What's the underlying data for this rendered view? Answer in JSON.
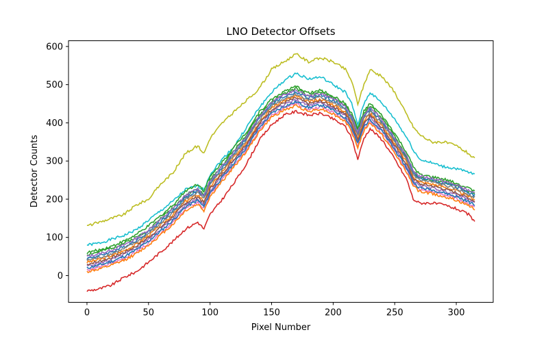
{
  "chart_data": {
    "type": "line",
    "title": "LNO Detector Offsets",
    "xlabel": "Pixel Number",
    "ylabel": "Detector Counts",
    "xlim": [
      -15,
      330
    ],
    "ylim": [
      -70,
      615
    ],
    "xticks": [
      0,
      50,
      100,
      150,
      200,
      250,
      300
    ],
    "yticks": [
      0,
      100,
      200,
      300,
      400,
      500,
      600
    ],
    "grid": false,
    "legend": "none",
    "x_range": [
      0,
      315
    ],
    "profile_x": [
      0,
      10,
      20,
      30,
      40,
      50,
      60,
      70,
      80,
      90,
      95,
      100,
      110,
      120,
      130,
      140,
      150,
      160,
      170,
      180,
      190,
      200,
      210,
      215,
      220,
      225,
      230,
      240,
      250,
      260,
      265,
      270,
      280,
      290,
      300,
      310,
      315
    ],
    "series": [
      {
        "color": "#bcbd22",
        "values": [
          130,
          140,
          150,
          160,
          185,
          200,
          240,
          270,
          320,
          340,
          320,
          360,
          400,
          430,
          460,
          490,
          540,
          560,
          580,
          560,
          570,
          560,
          540,
          510,
          450,
          500,
          540,
          520,
          480,
          420,
          390,
          370,
          350,
          350,
          340,
          320,
          305
        ]
      },
      {
        "color": "#17becf",
        "values": [
          80,
          85,
          95,
          105,
          120,
          145,
          170,
          195,
          225,
          235,
          225,
          265,
          305,
          340,
          390,
          440,
          480,
          510,
          530,
          515,
          520,
          500,
          480,
          450,
          395,
          450,
          480,
          450,
          410,
          360,
          330,
          305,
          295,
          285,
          280,
          270,
          265
        ]
      },
      {
        "color": "#2ca02c",
        "values": [
          55,
          62,
          72,
          85,
          100,
          120,
          150,
          178,
          210,
          228,
          210,
          250,
          290,
          330,
          370,
          420,
          455,
          475,
          490,
          470,
          480,
          465,
          445,
          420,
          380,
          425,
          445,
          410,
          365,
          310,
          275,
          255,
          250,
          245,
          235,
          220,
          215
        ]
      },
      {
        "color": "#ff7f0e",
        "values": [
          35,
          42,
          52,
          65,
          82,
          105,
          132,
          160,
          195,
          212,
          195,
          232,
          272,
          312,
          352,
          402,
          440,
          458,
          470,
          455,
          462,
          448,
          428,
          402,
          360,
          405,
          425,
          392,
          345,
          295,
          260,
          245,
          240,
          232,
          222,
          208,
          200
        ]
      },
      {
        "color": "#1f77b4",
        "values": [
          45,
          52,
          62,
          75,
          92,
          115,
          142,
          170,
          205,
          222,
          205,
          242,
          282,
          322,
          362,
          412,
          450,
          468,
          480,
          465,
          472,
          458,
          438,
          412,
          370,
          415,
          435,
          402,
          355,
          305,
          270,
          255,
          250,
          242,
          232,
          218,
          210
        ]
      },
      {
        "color": "#9467bd",
        "values": [
          25,
          32,
          42,
          55,
          72,
          95,
          122,
          150,
          185,
          202,
          185,
          222,
          262,
          302,
          342,
          392,
          430,
          448,
          460,
          445,
          452,
          438,
          418,
          392,
          350,
          395,
          415,
          382,
          335,
          285,
          250,
          235,
          230,
          222,
          212,
          198,
          190
        ]
      },
      {
        "color": "#e377c2",
        "values": [
          15,
          22,
          32,
          45,
          62,
          85,
          112,
          140,
          175,
          192,
          175,
          212,
          252,
          292,
          332,
          382,
          420,
          438,
          450,
          435,
          442,
          428,
          408,
          382,
          340,
          385,
          405,
          372,
          325,
          275,
          240,
          225,
          220,
          212,
          202,
          188,
          180
        ]
      },
      {
        "color": "#8c564b",
        "values": [
          30,
          37,
          47,
          60,
          77,
          100,
          127,
          155,
          190,
          207,
          190,
          227,
          267,
          307,
          347,
          397,
          435,
          453,
          465,
          450,
          457,
          443,
          423,
          397,
          355,
          400,
          420,
          387,
          340,
          290,
          255,
          240,
          235,
          227,
          217,
          203,
          195
        ]
      },
      {
        "color": "#7f7f7f",
        "values": [
          40,
          47,
          57,
          70,
          87,
          110,
          137,
          165,
          200,
          217,
          200,
          237,
          277,
          317,
          357,
          407,
          445,
          463,
          475,
          460,
          467,
          453,
          433,
          407,
          365,
          410,
          430,
          397,
          350,
          300,
          265,
          250,
          245,
          237,
          227,
          213,
          205
        ]
      },
      {
        "color": "#d62728",
        "values": [
          -40,
          -35,
          -25,
          -5,
          10,
          35,
          62,
          90,
          122,
          140,
          122,
          160,
          200,
          245,
          295,
          355,
          395,
          420,
          430,
          420,
          425,
          410,
          390,
          360,
          305,
          360,
          385,
          355,
          305,
          250,
          200,
          190,
          190,
          185,
          175,
          160,
          140
        ]
      },
      {
        "color": "#2ca02c",
        "values": [
          60,
          67,
          77,
          90,
          107,
          130,
          157,
          185,
          222,
          240,
          222,
          258,
          298,
          338,
          378,
          428,
          462,
          482,
          495,
          478,
          485,
          470,
          450,
          425,
          385,
          430,
          450,
          417,
          372,
          320,
          285,
          265,
          258,
          252,
          242,
          228,
          222
        ]
      },
      {
        "color": "#1f77b4",
        "values": [
          20,
          27,
          37,
          50,
          67,
          90,
          117,
          145,
          180,
          197,
          180,
          217,
          257,
          297,
          337,
          387,
          425,
          443,
          455,
          440,
          447,
          433,
          413,
          387,
          345,
          390,
          410,
          377,
          330,
          280,
          245,
          230,
          225,
          217,
          207,
          193,
          185
        ]
      },
      {
        "color": "#ff7f0e",
        "values": [
          10,
          17,
          27,
          40,
          57,
          80,
          107,
          135,
          170,
          187,
          170,
          207,
          247,
          287,
          327,
          377,
          415,
          433,
          445,
          430,
          437,
          423,
          403,
          377,
          335,
          380,
          400,
          367,
          320,
          270,
          235,
          220,
          215,
          207,
          197,
          183,
          175
        ]
      },
      {
        "color": "#9467bd",
        "values": [
          50,
          57,
          67,
          80,
          97,
          120,
          147,
          175,
          210,
          227,
          210,
          247,
          287,
          327,
          367,
          417,
          455,
          473,
          485,
          470,
          477,
          463,
          443,
          417,
          375,
          420,
          440,
          407,
          360,
          310,
          275,
          260,
          255,
          247,
          237,
          223,
          215
        ]
      }
    ]
  }
}
